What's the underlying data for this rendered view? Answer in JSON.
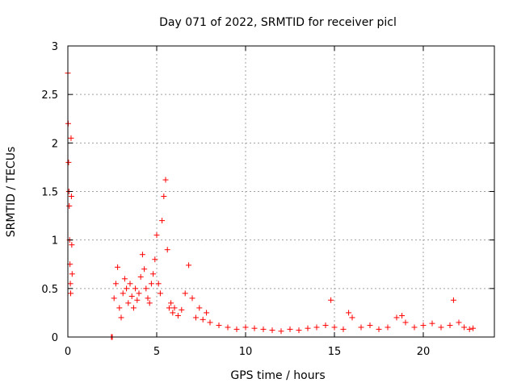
{
  "chart_data": {
    "type": "scatter",
    "title": "Day 071 of 2022, SRMTID for receiver picl",
    "xlabel": "GPS time / hours",
    "ylabel": "SRMTID / TECUs",
    "xlim": [
      0,
      24
    ],
    "ylim": [
      0,
      3
    ],
    "x_ticks": [
      0,
      5,
      10,
      15,
      20
    ],
    "x_tick_labels": [
      "0",
      "5",
      "10",
      "15",
      "20"
    ],
    "y_ticks": [
      0,
      0.5,
      1,
      1.5,
      2,
      2.5,
      3
    ],
    "y_tick_labels": [
      "0",
      "0.5",
      "1",
      "1.5",
      "2",
      "2.5",
      "3"
    ],
    "grid": true,
    "marker": "+",
    "series": [
      {
        "name": "SRMTID",
        "color": "#ff0000",
        "x": [
          0.0,
          0.02,
          0.04,
          0.06,
          0.08,
          0.1,
          0.12,
          0.14,
          0.16,
          0.18,
          0.2,
          0.22,
          0.24,
          2.45,
          2.5,
          2.6,
          2.7,
          2.8,
          2.9,
          3.0,
          3.1,
          3.2,
          3.3,
          3.4,
          3.5,
          3.6,
          3.7,
          3.8,
          3.9,
          4.0,
          4.1,
          4.2,
          4.3,
          4.4,
          4.5,
          4.6,
          4.7,
          4.8,
          4.9,
          5.0,
          5.1,
          5.2,
          5.3,
          5.4,
          5.5,
          5.6,
          5.7,
          5.8,
          5.9,
          6.0,
          6.2,
          6.4,
          6.6,
          6.8,
          7.0,
          7.2,
          7.4,
          7.6,
          7.8,
          8.0,
          8.5,
          9.0,
          9.5,
          10.0,
          10.5,
          11.0,
          11.5,
          12.0,
          12.5,
          13.0,
          13.5,
          14.0,
          14.5,
          14.8,
          15.0,
          15.5,
          15.8,
          16.0,
          16.5,
          17.0,
          17.5,
          18.0,
          18.5,
          18.8,
          19.0,
          19.5,
          20.0,
          20.5,
          21.0,
          21.5,
          21.7,
          22.0,
          22.3,
          22.6,
          22.8
        ],
        "y": [
          2.72,
          2.2,
          1.8,
          1.5,
          1.35,
          1.0,
          0.75,
          0.55,
          0.45,
          2.05,
          1.45,
          0.95,
          0.65,
          0.0,
          0.0,
          0.4,
          0.55,
          0.72,
          0.3,
          0.2,
          0.45,
          0.6,
          0.5,
          0.35,
          0.55,
          0.42,
          0.3,
          0.5,
          0.38,
          0.45,
          0.62,
          0.85,
          0.7,
          0.5,
          0.4,
          0.35,
          0.55,
          0.65,
          0.8,
          1.05,
          0.55,
          0.45,
          1.2,
          1.45,
          1.62,
          0.9,
          0.3,
          0.35,
          0.25,
          0.3,
          0.22,
          0.28,
          0.45,
          0.74,
          0.4,
          0.2,
          0.3,
          0.18,
          0.25,
          0.15,
          0.12,
          0.1,
          0.08,
          0.1,
          0.09,
          0.08,
          0.07,
          0.06,
          0.08,
          0.07,
          0.09,
          0.1,
          0.12,
          0.38,
          0.1,
          0.08,
          0.25,
          0.2,
          0.1,
          0.12,
          0.08,
          0.1,
          0.2,
          0.22,
          0.15,
          0.1,
          0.12,
          0.14,
          0.1,
          0.12,
          0.38,
          0.15,
          0.1,
          0.08,
          0.09
        ]
      }
    ]
  }
}
